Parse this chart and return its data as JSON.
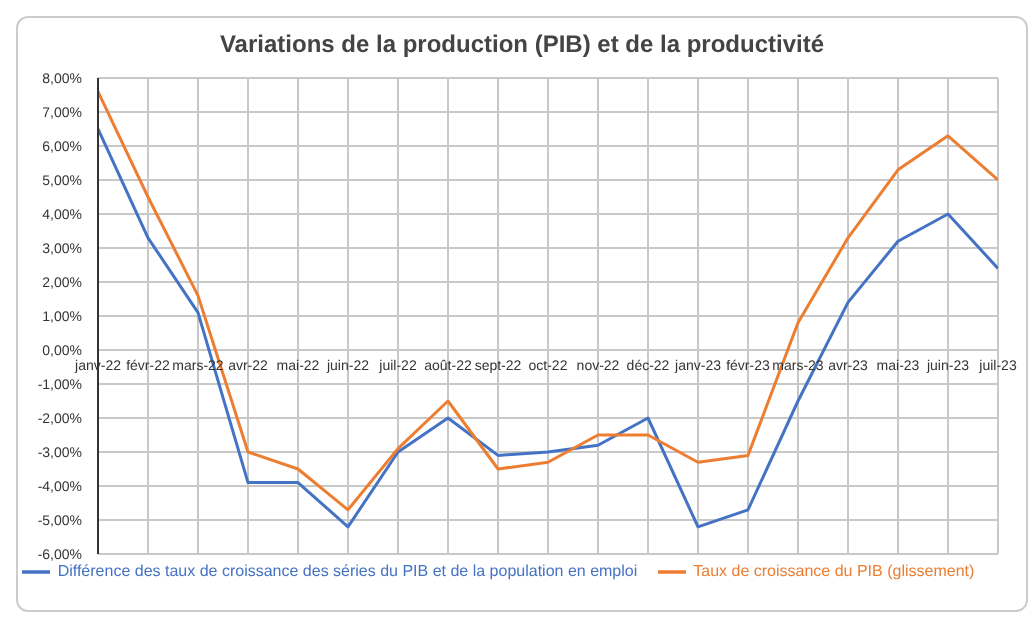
{
  "chart_data": {
    "type": "line",
    "title": "Variations de la production (PIB) et de la productivité",
    "categories": [
      "janv-22",
      "févr-22",
      "mars-22",
      "avr-22",
      "mai-22",
      "juin-22",
      "juil-22",
      "août-22",
      "sept-22",
      "oct-22",
      "nov-22",
      "déc-22",
      "janv-23",
      "févr-23",
      "mars-23",
      "avr-23",
      "mai-23",
      "juin-23",
      "juil-23"
    ],
    "series": [
      {
        "name": "Différence des taux de croissance des séries du PIB et de la population en emploi",
        "color": "#4472c4",
        "values": [
          6.5,
          3.3,
          1.1,
          -3.9,
          -3.9,
          -5.2,
          -3.0,
          -2.0,
          -3.1,
          -3.0,
          -2.8,
          -2.0,
          -5.2,
          -4.7,
          -1.5,
          1.4,
          3.2,
          4.0,
          2.4
        ]
      },
      {
        "name": "Taux de croissance du PIB (glissement)",
        "color": "#ed7d31",
        "values": [
          7.6,
          4.5,
          1.6,
          -3.0,
          -3.5,
          -4.7,
          -2.9,
          -1.5,
          -3.5,
          -3.3,
          -2.5,
          -2.5,
          -3.3,
          -3.1,
          0.8,
          3.3,
          5.3,
          6.3,
          5.0
        ]
      }
    ],
    "ylim": [
      -6,
      8
    ],
    "yticks": [
      {
        "value": -6,
        "label": "-6,00%"
      },
      {
        "value": -5,
        "label": "-5,00%"
      },
      {
        "value": -4,
        "label": "-4,00%"
      },
      {
        "value": -3,
        "label": "-3,00%"
      },
      {
        "value": -2,
        "label": "-2,00%"
      },
      {
        "value": -1,
        "label": "-1,00%"
      },
      {
        "value": 0,
        "label": "0,00%"
      },
      {
        "value": 1,
        "label": "1,00%"
      },
      {
        "value": 2,
        "label": "2,00%"
      },
      {
        "value": 3,
        "label": "3,00%"
      },
      {
        "value": 4,
        "label": "4,00%"
      },
      {
        "value": 5,
        "label": "5,00%"
      },
      {
        "value": 6,
        "label": "6,00%"
      },
      {
        "value": 7,
        "label": "7,00%"
      },
      {
        "value": 8,
        "label": "8,00%"
      }
    ],
    "grid": true,
    "legend": "bottom",
    "marker": "none",
    "line_style": "solid"
  }
}
